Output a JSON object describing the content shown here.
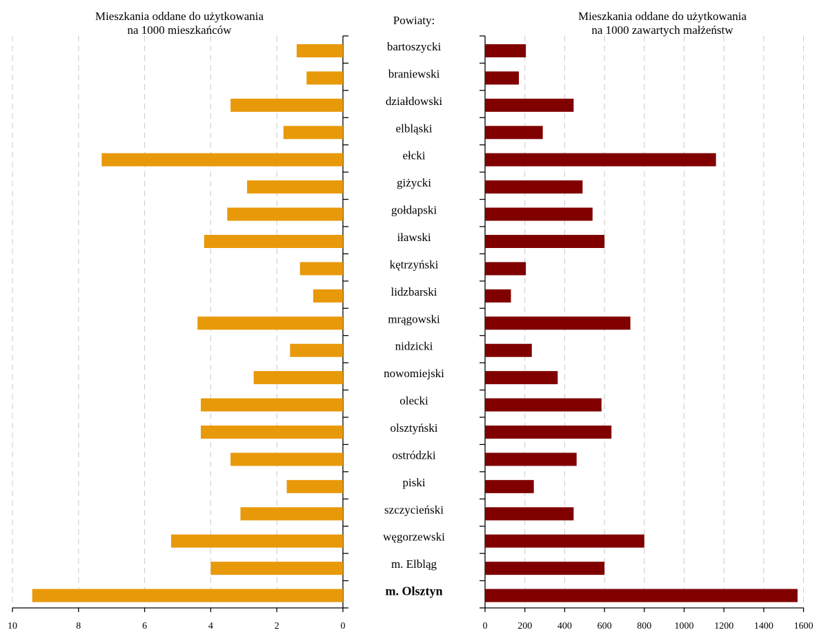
{
  "titles": {
    "left_line1": "Mieszkania oddane do użytkowania",
    "left_line2": "na 1000 mieszkańców",
    "center": "Powiaty:",
    "right_line1": "Mieszkania oddane do użytkowania",
    "right_line2": "na 1000 zawartych małżeństw"
  },
  "chart_data": [
    {
      "type": "bar",
      "orientation": "horizontal",
      "direction": "right-to-left",
      "title": "Mieszkania oddane do użytkowania na 1000 mieszkańców",
      "categories": [
        "bartoszycki",
        "braniewski",
        "działdowski",
        "elbląski",
        "ełcki",
        "giżycki",
        "gołdapski",
        "iławski",
        "kętrzyński",
        "lidzbarski",
        "mrągowski",
        "nidzicki",
        "nowomiejski",
        "olecki",
        "olsztyński",
        "ostródzki",
        "piski",
        "szczycieński",
        "węgorzewski",
        "m. Elbląg",
        "m. Olsztyn"
      ],
      "values": [
        1.4,
        1.1,
        3.4,
        1.8,
        7.3,
        2.9,
        3.5,
        4.2,
        1.3,
        0.9,
        4.4,
        1.6,
        2.7,
        4.3,
        4.3,
        3.4,
        1.7,
        3.1,
        5.2,
        4.0,
        9.4
      ],
      "xlim": [
        0,
        10
      ],
      "ticks": [
        "10",
        "8",
        "6",
        "4",
        "2",
        "0"
      ],
      "grid": true,
      "color": "#E8990A"
    },
    {
      "type": "bar",
      "orientation": "horizontal",
      "title": "Mieszkania oddane do użytkowania na 1000 zawartych małżeństw",
      "categories": [
        "bartoszycki",
        "braniewski",
        "działdowski",
        "elbląski",
        "ełcki",
        "giżycki",
        "gołdapski",
        "iławski",
        "kętrzyński",
        "lidzbarski",
        "mrągowski",
        "nidzicki",
        "nowomiejski",
        "olecki",
        "olsztyński",
        "ostródzki",
        "piski",
        "szczycieński",
        "węgorzewski",
        "m. Elbląg",
        "m. Olsztyn"
      ],
      "values": [
        205,
        170,
        445,
        290,
        1160,
        490,
        540,
        600,
        205,
        130,
        730,
        235,
        365,
        585,
        635,
        460,
        245,
        445,
        800,
        600,
        1570
      ],
      "xlim": [
        0,
        1600
      ],
      "ticks": [
        "0",
        "200",
        "400",
        "600",
        "800",
        "1000",
        "1200",
        "1400",
        "1600"
      ],
      "grid": true,
      "color": "#800000"
    }
  ],
  "highlight_category": "m. Olsztyn"
}
